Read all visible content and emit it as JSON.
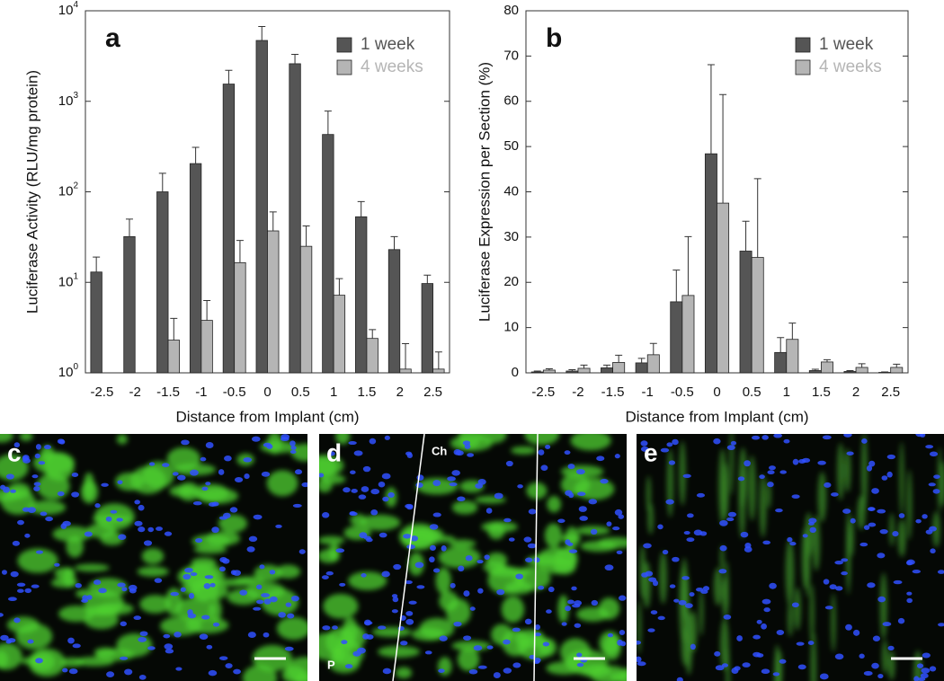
{
  "chart_data": [
    {
      "type": "bar",
      "panel_label": "a",
      "log_scale": true,
      "ylabel": "Luciferase Activity (RLU/mg protein)",
      "xlabel": "Distance from Implant (cm)",
      "categories": [
        "-2.5",
        "-2",
        "-1.5",
        "-1",
        "-0.5",
        "0",
        "0.5",
        "1",
        "1.5",
        "2",
        "2.5"
      ],
      "series": [
        {
          "name": "1 week",
          "color": "#555555",
          "values": [
            13,
            32,
            100,
            205,
            1550,
            4700,
            2600,
            430,
            53,
            23,
            9.7
          ],
          "errors": [
            6,
            18,
            60,
            105,
            650,
            2000,
            700,
            350,
            25,
            9,
            2.3
          ]
        },
        {
          "name": "4 weeks",
          "color": "#b5b5b5",
          "values": [
            null,
            null,
            2.3,
            3.8,
            16.5,
            37,
            25,
            7.2,
            2.4,
            1.1,
            1.1
          ],
          "errors": [
            null,
            null,
            1.7,
            2.5,
            12.5,
            23,
            17,
            3.8,
            0.6,
            1.0,
            0.6
          ]
        }
      ],
      "ylim": [
        1,
        10000
      ],
      "yticks": [
        {
          "value": 1,
          "label": "10",
          "exponent": "0"
        },
        {
          "value": 10,
          "label": "10",
          "exponent": "1"
        },
        {
          "value": 100,
          "label": "10",
          "exponent": "2"
        },
        {
          "value": 1000,
          "label": "10",
          "exponent": "3"
        },
        {
          "value": 10000,
          "label": "10",
          "exponent": "4"
        }
      ],
      "legend": "upper right"
    },
    {
      "type": "bar",
      "panel_label": "b",
      "log_scale": false,
      "ylabel": "Luciferase Expression per Section (%)",
      "xlabel": "Distance from Implant (cm)",
      "categories": [
        "-2.5",
        "-2",
        "-1.5",
        "-1",
        "-0.5",
        "0",
        "0.5",
        "1",
        "1.5",
        "2",
        "2.5"
      ],
      "series": [
        {
          "name": "1 week",
          "color": "#555555",
          "values": [
            0.2,
            0.4,
            1.1,
            2.2,
            15.7,
            48.4,
            26.9,
            4.5,
            0.5,
            0.3,
            0.1
          ],
          "errors": [
            0.2,
            0.3,
            0.6,
            1,
            7,
            19.7,
            6.6,
            3.3,
            0.3,
            0.2,
            0.1
          ]
        },
        {
          "name": "4 weeks",
          "color": "#b5b5b5",
          "values": [
            0.6,
            1.0,
            2.3,
            4.0,
            17.1,
            37.5,
            25.5,
            7.4,
            2.4,
            1.2,
            1.2
          ],
          "errors": [
            0.3,
            0.7,
            1.6,
            2.5,
            13,
            24,
            17.4,
            3.6,
            0.5,
            0.8,
            0.7
          ]
        }
      ],
      "ylim": [
        0,
        80
      ],
      "yticks": [
        0,
        10,
        20,
        30,
        40,
        50,
        60,
        70,
        80
      ],
      "legend": "upper right"
    }
  ],
  "panels": [
    {
      "label": "c"
    },
    {
      "label": "d",
      "annotations": [
        "Ch",
        "P"
      ]
    },
    {
      "label": "e"
    }
  ]
}
